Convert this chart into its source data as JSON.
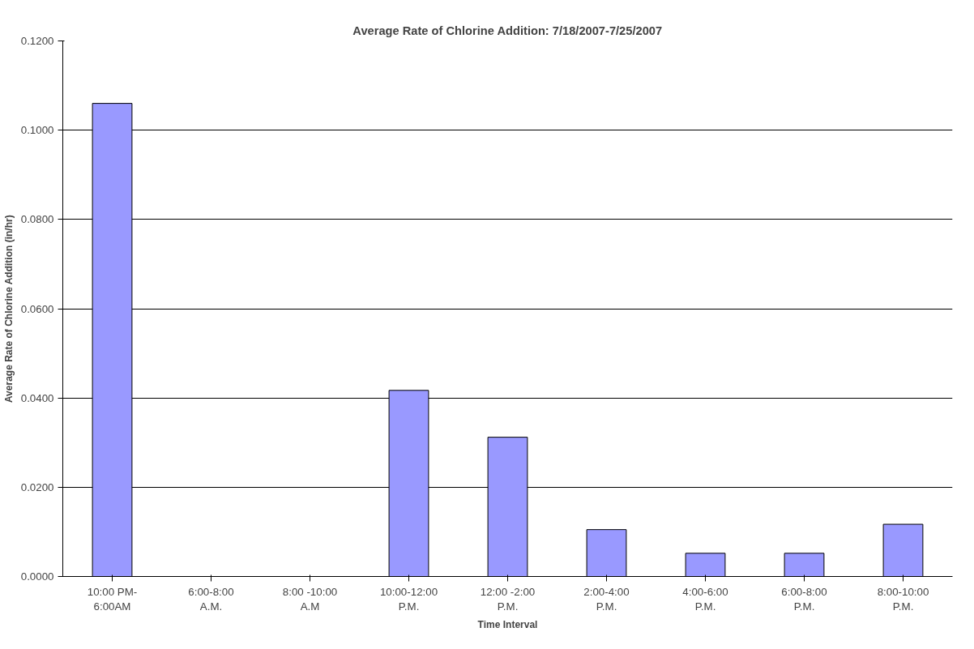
{
  "chart_data": {
    "type": "bar",
    "title": "Average Rate of Chlorine Addition: 7/18/2007-7/25/2007",
    "xlabel": "Time Interval",
    "ylabel": "Average Rate of Chlorine Addition (in/hr)",
    "categories": [
      "10:00 PM-\n6:00AM",
      "6:00-8:00\nA.M.",
      "8:00 -10:00\nA.M",
      "10:00-12:00\nP.M.",
      "12:00 -2:00\nP.M.",
      "2:00-4:00\nP.M.",
      "4:00-6:00\nP.M.",
      "6:00-8:00\nP.M.",
      "8:00-10:00\nP.M."
    ],
    "values": [
      0.106,
      0,
      0,
      0.0417,
      0.0312,
      0.0105,
      0.0052,
      0.0052,
      0.0117
    ],
    "color": "#9999ff",
    "ylim": [
      0,
      0.12
    ],
    "yticks": [
      {
        "value": 0,
        "label": "0.0000"
      },
      {
        "value": 0.02,
        "label": "0.0200"
      },
      {
        "value": 0.04,
        "label": "0.0400"
      },
      {
        "value": 0.06,
        "label": "0.0600"
      },
      {
        "value": 0.08,
        "label": "0.0800"
      },
      {
        "value": 0.1,
        "label": "0.1000"
      },
      {
        "value": 0.12,
        "label": "0.1200"
      }
    ],
    "grid": "y"
  }
}
